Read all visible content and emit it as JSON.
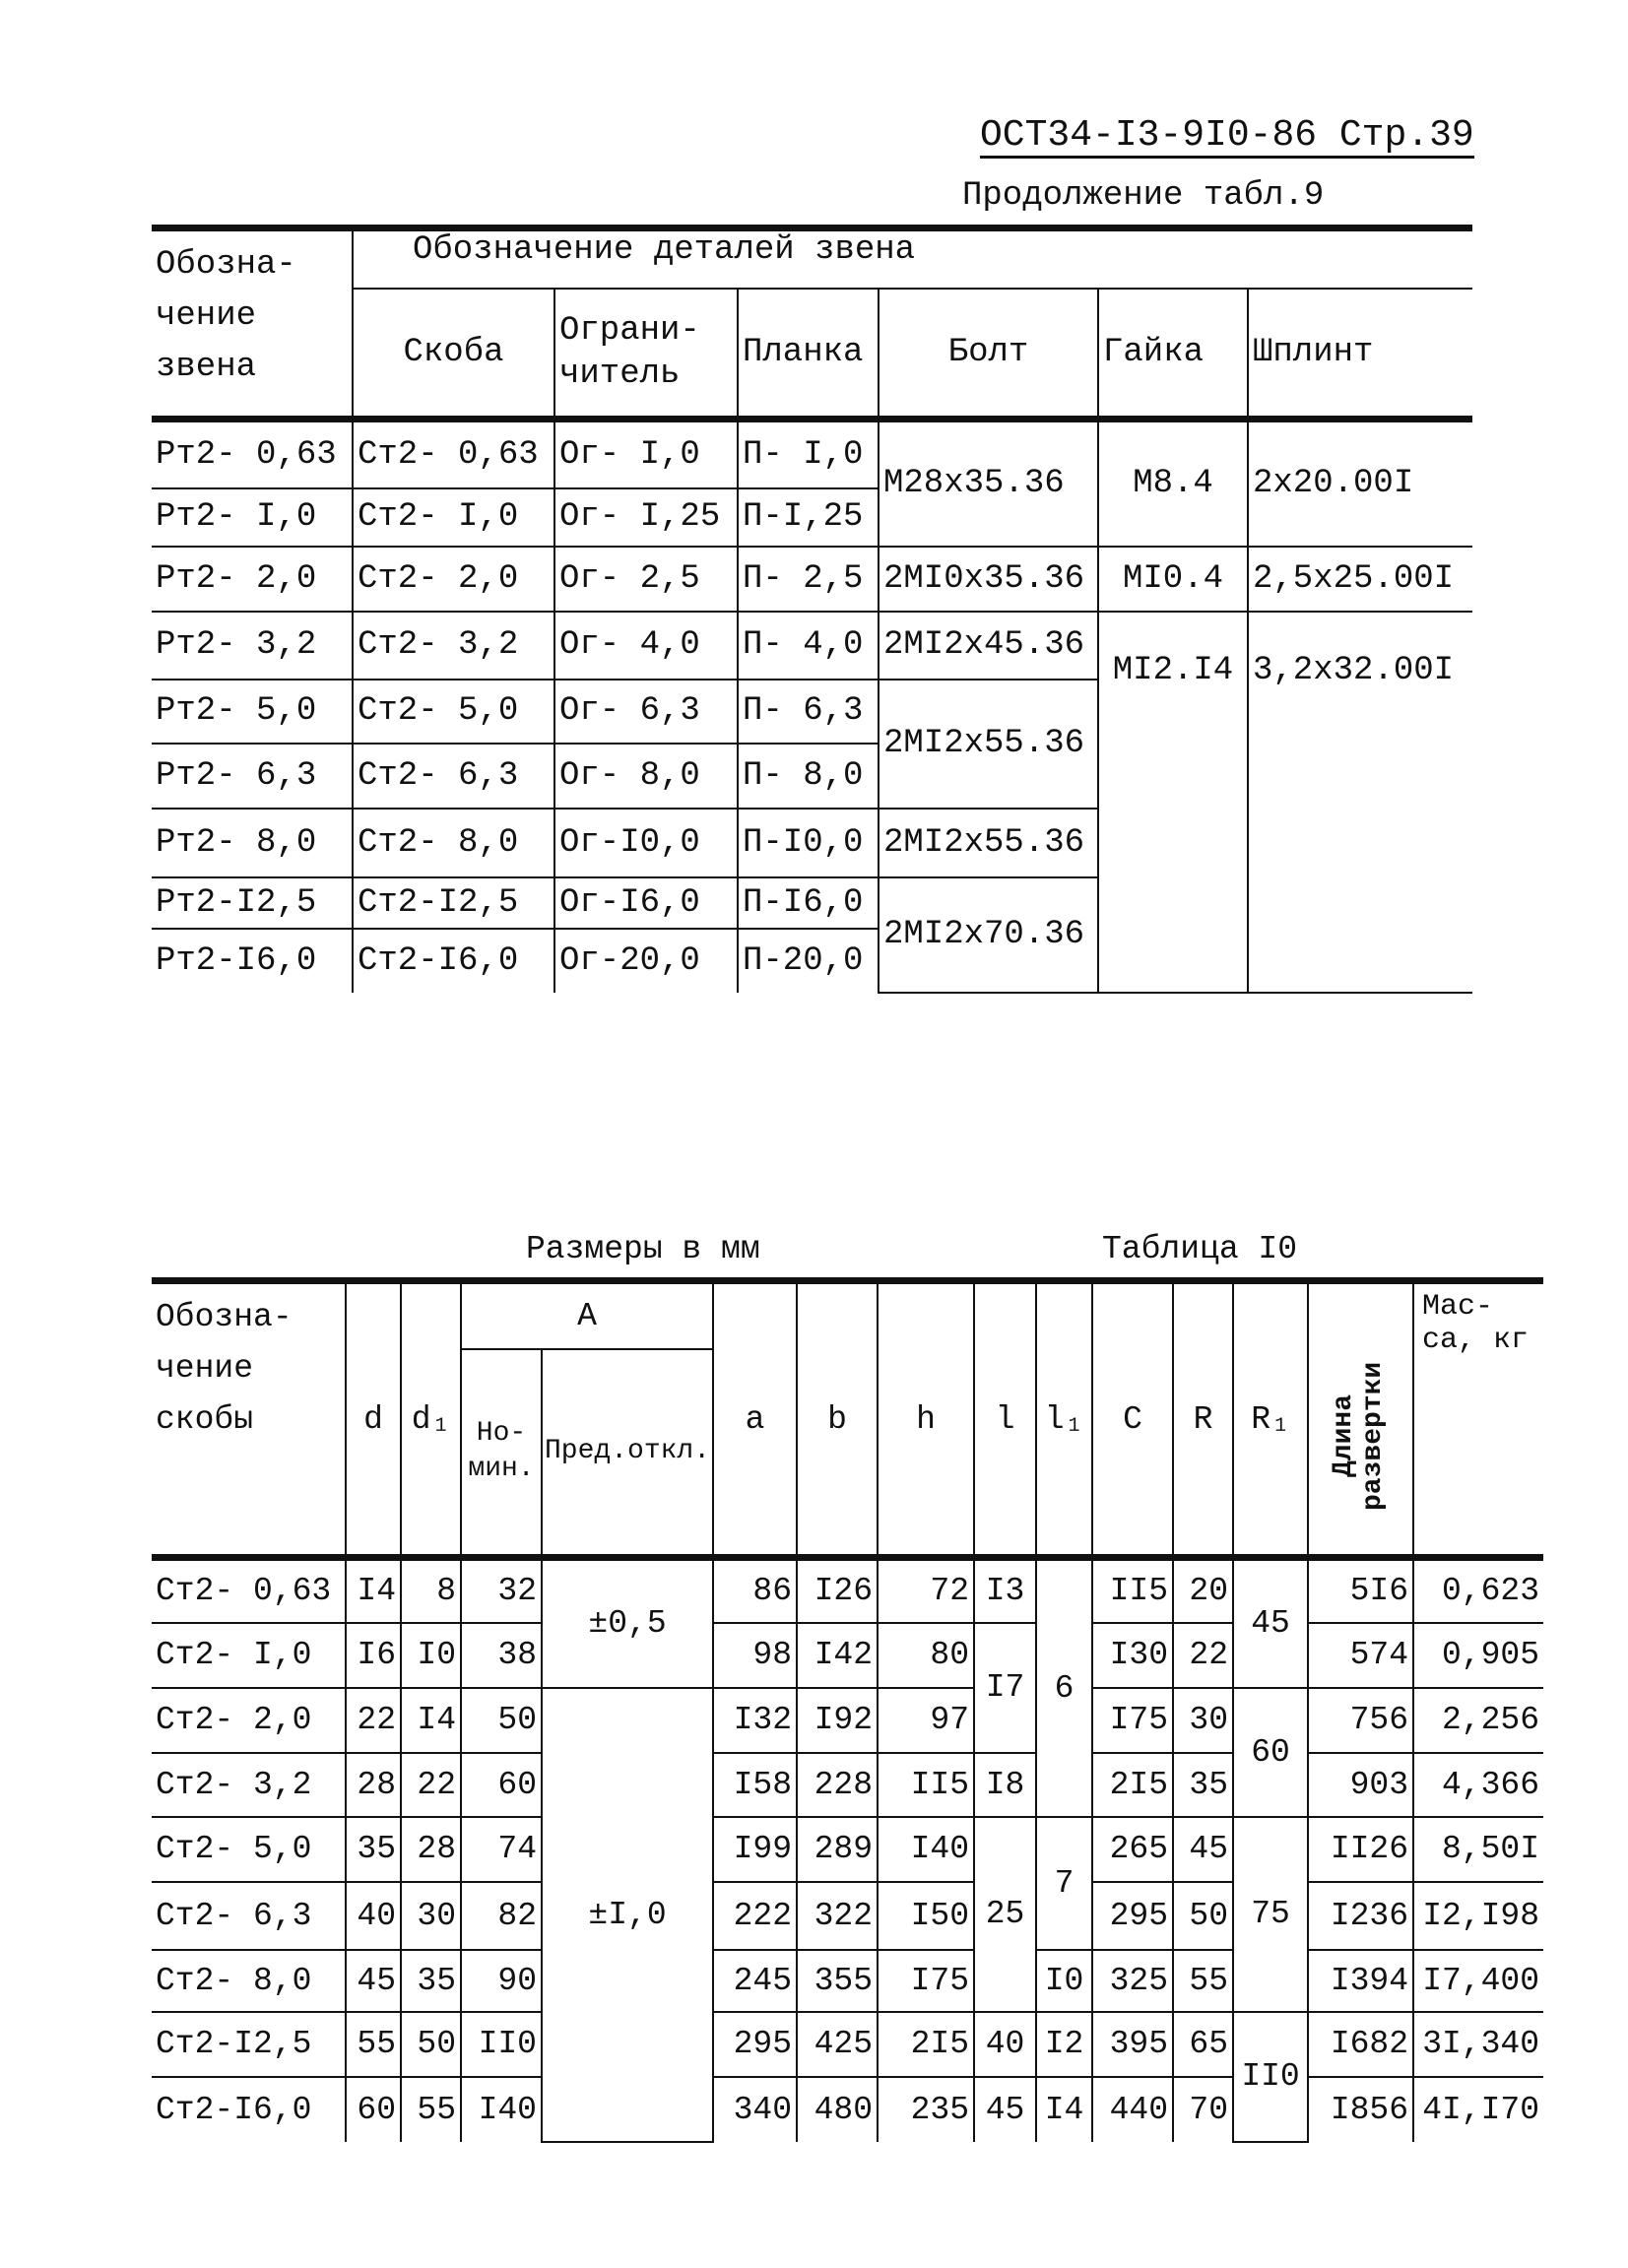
{
  "page_header": {
    "doc_code": "ОСТ34-I3-9I0-86 Стр.39"
  },
  "table9": {
    "caption": "Продолжение табл.9",
    "header": {
      "link_designation": "Обозна-чение звена",
      "group": "Обозначение деталей звена",
      "columns": [
        "Скоба",
        "Ограни-читель",
        "Планка",
        "Болт",
        "Гайка",
        "Шплинт"
      ]
    },
    "rows": [
      [
        {
          "t": "Рт2- 0,63"
        },
        {
          "t": "Ст2- 0,63"
        },
        {
          "t": "Ог- I,0"
        },
        {
          "t": "П- I,0"
        },
        {
          "t": "М28x35.36",
          "rowspan": 2
        },
        {
          "t": "М8.4",
          "rowspan": 2
        },
        {
          "t": "2x20.00I",
          "rowspan": 2
        }
      ],
      [
        {
          "t": "Рт2- I,0"
        },
        {
          "t": "Ст2- I,0"
        },
        {
          "t": "Ог- I,25"
        },
        {
          "t": "П-I,25"
        }
      ],
      [
        {
          "t": "Рт2- 2,0"
        },
        {
          "t": "Ст2- 2,0"
        },
        {
          "t": "Ог- 2,5"
        },
        {
          "t": "П- 2,5"
        },
        {
          "t": "2МI0x35.36"
        },
        {
          "t": "МI0.4"
        },
        {
          "t": "2,5x25.00I"
        }
      ],
      [
        {
          "t": "Рт2- 3,2"
        },
        {
          "t": "Ст2- 3,2"
        },
        {
          "t": "Ог- 4,0"
        },
        {
          "t": "П- 4,0"
        },
        {
          "t": "2МI2x45.36"
        },
        {
          "t": "МI2.I4",
          "rowspan": 6
        },
        {
          "t": "3,2x32.00I",
          "rowspan": 6
        }
      ],
      [
        {
          "t": "Рт2- 5,0"
        },
        {
          "t": "Ст2- 5,0"
        },
        {
          "t": "Ог- 6,3"
        },
        {
          "t": "П- 6,3"
        },
        {
          "t": "2МI2x55.36",
          "rowspan": 2
        }
      ],
      [
        {
          "t": "Рт2- 6,3"
        },
        {
          "t": "Ст2- 6,3"
        },
        {
          "t": "Ог- 8,0"
        },
        {
          "t": "П- 8,0"
        }
      ],
      [
        {
          "t": "Рт2- 8,0"
        },
        {
          "t": "Ст2- 8,0"
        },
        {
          "t": "Ог-I0,0"
        },
        {
          "t": "П-I0,0"
        },
        {
          "t": "2МI2x55.36"
        }
      ],
      [
        {
          "t": "Рт2-I2,5"
        },
        {
          "t": "Ст2-I2,5"
        },
        {
          "t": "Ог-I6,0"
        },
        {
          "t": "П-I6,0"
        },
        {
          "t": "2МI2x70.36",
          "rowspan": 2
        }
      ],
      [
        {
          "t": "Рт2-I6,0"
        },
        {
          "t": "Ст2-I6,0"
        },
        {
          "t": "Ог-20,0"
        },
        {
          "t": "П-20,0"
        }
      ]
    ]
  },
  "table10": {
    "units": "Размеры в мм",
    "caption": "Таблица I0",
    "header": {
      "bracket_designation": "Обозна-чение скобы",
      "d": "d",
      "d1": "d₁",
      "A": "A",
      "A_nominal": "Но-мин.",
      "A_tolerance": "Пред.откл.",
      "a": "a",
      "b": "b",
      "h": "h",
      "l": "l",
      "l1": "l₁",
      "C": "C",
      "R": "R",
      "R1": "R₁",
      "developed_length": "Длина развертки",
      "mass": "Мас-са, кг"
    },
    "rows": [
      [
        {
          "t": "Ст2- 0,63"
        },
        {
          "t": "I4"
        },
        {
          "t": "8"
        },
        {
          "t": "32"
        },
        {
          "t": "±0,5",
          "rowspan": 2
        },
        {
          "t": "86"
        },
        {
          "t": "I26"
        },
        {
          "t": "72"
        },
        {
          "t": "I3"
        },
        {
          "t": "6",
          "rowspan": 4
        },
        {
          "t": "II5"
        },
        {
          "t": "20"
        },
        {
          "t": "45",
          "rowspan": 2
        },
        {
          "t": "5I6"
        },
        {
          "t": "0,623"
        }
      ],
      [
        {
          "t": "Ст2- I,0"
        },
        {
          "t": "I6"
        },
        {
          "t": "I0"
        },
        {
          "t": "38"
        },
        {
          "t": "98"
        },
        {
          "t": "I42"
        },
        {
          "t": "80"
        },
        {
          "t": "I7",
          "rowspan": 2
        },
        {
          "t": "I30"
        },
        {
          "t": "22"
        },
        {
          "t": "574"
        },
        {
          "t": "0,905"
        }
      ],
      [
        {
          "t": "Ст2- 2,0"
        },
        {
          "t": "22"
        },
        {
          "t": "I4"
        },
        {
          "t": "50"
        },
        {
          "t": "±I,0",
          "rowspan": 7
        },
        {
          "t": "I32"
        },
        {
          "t": "I92"
        },
        {
          "t": "97"
        },
        {
          "t": "I75"
        },
        {
          "t": "30"
        },
        {
          "t": "60",
          "rowspan": 2
        },
        {
          "t": "756"
        },
        {
          "t": "2,256"
        }
      ],
      [
        {
          "t": "Ст2- 3,2"
        },
        {
          "t": "28"
        },
        {
          "t": "22"
        },
        {
          "t": "60"
        },
        {
          "t": "I58"
        },
        {
          "t": "228"
        },
        {
          "t": "II5"
        },
        {
          "t": "I8"
        },
        {
          "t": "2I5"
        },
        {
          "t": "35"
        },
        {
          "t": "903"
        },
        {
          "t": "4,366"
        }
      ],
      [
        {
          "t": "Ст2- 5,0"
        },
        {
          "t": "35"
        },
        {
          "t": "28"
        },
        {
          "t": "74"
        },
        {
          "t": "I99"
        },
        {
          "t": "289"
        },
        {
          "t": "I40"
        },
        {
          "t": "25",
          "rowspan": 3
        },
        {
          "t": "7",
          "rowspan": 2
        },
        {
          "t": "265"
        },
        {
          "t": "45"
        },
        {
          "t": "75",
          "rowspan": 3
        },
        {
          "t": "II26"
        },
        {
          "t": "8,50I"
        }
      ],
      [
        {
          "t": "Ст2- 6,3"
        },
        {
          "t": "40"
        },
        {
          "t": "30"
        },
        {
          "t": "82"
        },
        {
          "t": "222"
        },
        {
          "t": "322"
        },
        {
          "t": "I50"
        },
        {
          "t": "295"
        },
        {
          "t": "50"
        },
        {
          "t": "I236"
        },
        {
          "t": "I2,I98"
        }
      ],
      [
        {
          "t": "Ст2- 8,0"
        },
        {
          "t": "45"
        },
        {
          "t": "35"
        },
        {
          "t": "90"
        },
        {
          "t": "245"
        },
        {
          "t": "355"
        },
        {
          "t": "I75"
        },
        {
          "t": "I0"
        },
        {
          "t": "325"
        },
        {
          "t": "55"
        },
        {
          "t": "I394"
        },
        {
          "t": "I7,400"
        }
      ],
      [
        {
          "t": "Ст2-I2,5"
        },
        {
          "t": "55"
        },
        {
          "t": "50"
        },
        {
          "t": "II0"
        },
        {
          "t": "295"
        },
        {
          "t": "425"
        },
        {
          "t": "2I5"
        },
        {
          "t": "40"
        },
        {
          "t": "I2"
        },
        {
          "t": "395"
        },
        {
          "t": "65"
        },
        {
          "t": "II0",
          "rowspan": 2
        },
        {
          "t": "I682"
        },
        {
          "t": "3I,340"
        }
      ],
      [
        {
          "t": "Ст2-I6,0"
        },
        {
          "t": "60"
        },
        {
          "t": "55"
        },
        {
          "t": "I40"
        },
        {
          "t": "340"
        },
        {
          "t": "480"
        },
        {
          "t": "235"
        },
        {
          "t": "45"
        },
        {
          "t": "I4"
        },
        {
          "t": "440"
        },
        {
          "t": "70"
        },
        {
          "t": "I856"
        },
        {
          "t": "4I,I70"
        }
      ]
    ]
  }
}
